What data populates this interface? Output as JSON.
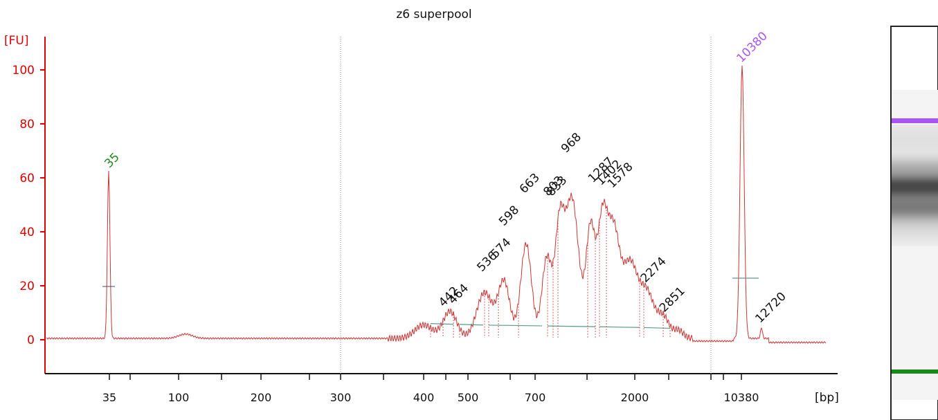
{
  "chart_data": {
    "type": "line",
    "title": "z6 superpool",
    "ylabel": "[FU]",
    "xlabel": "[bp]",
    "ylim": [
      -12,
      112
    ],
    "y_ticks": [
      0,
      20,
      40,
      60,
      80,
      100
    ],
    "x_tick_labels": [
      {
        "x": 35,
        "label": "35"
      },
      {
        "x": 100,
        "label": "100"
      },
      {
        "x": 200,
        "label": "200"
      },
      {
        "x": 300,
        "label": "300"
      },
      {
        "x": 400,
        "label": "400"
      },
      {
        "x": 500,
        "label": "500"
      },
      {
        "x": 700,
        "label": "700"
      },
      {
        "x": 2000,
        "label": "2000"
      },
      {
        "x": 10380,
        "label": "10380"
      }
    ],
    "markers": [
      {
        "size_bp": 35,
        "label": "35",
        "fu": 62,
        "color": "#1a8a1a"
      },
      {
        "size_bp": 10380,
        "label": "10380",
        "fu": 101,
        "color": "#a855f7"
      }
    ],
    "peaks": [
      {
        "label": "442",
        "size_bp": 442,
        "fu": 11
      },
      {
        "label": "464",
        "size_bp": 464,
        "fu": 12
      },
      {
        "label": "536",
        "size_bp": 536,
        "fu": 24
      },
      {
        "label": "574",
        "size_bp": 574,
        "fu": 29
      },
      {
        "label": "598",
        "size_bp": 598,
        "fu": 41
      },
      {
        "label": "663",
        "size_bp": 663,
        "fu": 53
      },
      {
        "label": "803",
        "size_bp": 803,
        "fu": 52
      },
      {
        "label": "833",
        "size_bp": 833,
        "fu": 52
      },
      {
        "label": "968",
        "size_bp": 968,
        "fu": 68
      },
      {
        "label": "1287",
        "size_bp": 1287,
        "fu": 57
      },
      {
        "label": "1402",
        "size_bp": 1402,
        "fu": 56
      },
      {
        "label": "1578",
        "size_bp": 1578,
        "fu": 55
      },
      {
        "label": "2274",
        "size_bp": 2274,
        "fu": 20
      },
      {
        "label": "2851",
        "size_bp": 2851,
        "fu": 9
      },
      {
        "label": "12720",
        "size_bp": 12720,
        "fu": 5
      }
    ],
    "grid": false,
    "legend": "none"
  },
  "colors": {
    "axis": "#e00000",
    "trace": "#cc3333",
    "baseline": "#5a9a8a",
    "marker_upper": "#a855f7",
    "marker_lower": "#1a8a1a"
  }
}
